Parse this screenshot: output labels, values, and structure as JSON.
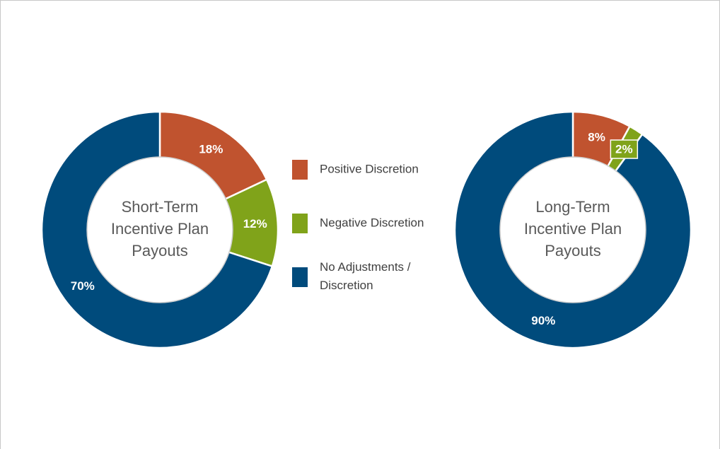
{
  "chart_data": [
    {
      "type": "donut",
      "title": [
        "Short-Term",
        "Incentive Plan",
        "Payouts"
      ],
      "categories": [
        "Positive Discretion",
        "Negative Discretion",
        "No Adjustments / Discretion"
      ],
      "values": [
        18,
        12,
        70
      ],
      "value_labels": [
        "18%",
        "12%",
        "70%"
      ],
      "colors": [
        "#c0532f",
        "#80a31a",
        "#004b7c"
      ]
    },
    {
      "type": "donut",
      "title": [
        "Long-Term",
        "Incentive Plan",
        "Payouts"
      ],
      "categories": [
        "Positive Discretion",
        "Negative Discretion",
        "No Adjustments / Discretion"
      ],
      "values": [
        8,
        2,
        90
      ],
      "value_labels": [
        "8%",
        "2%",
        "90%"
      ],
      "colors": [
        "#c0532f",
        "#80a31a",
        "#004b7c"
      ]
    }
  ]
}
